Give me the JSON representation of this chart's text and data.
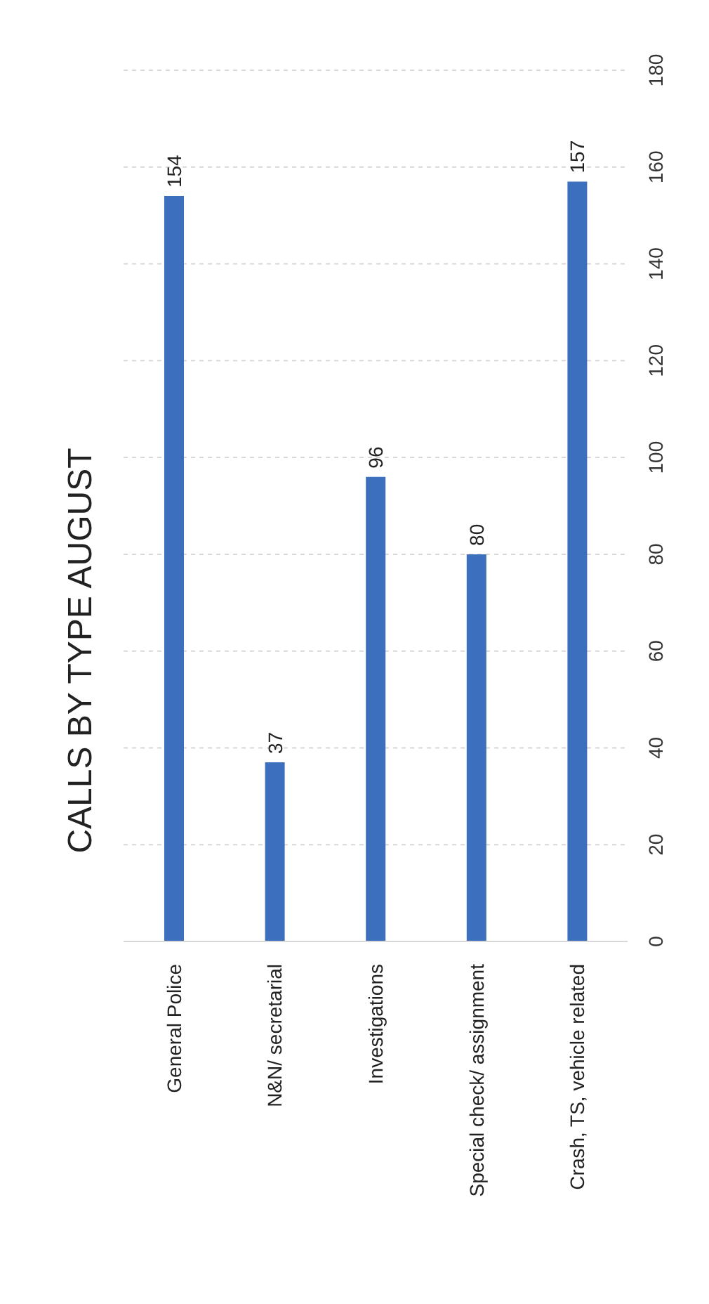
{
  "chart_data": {
    "type": "bar",
    "title": "CALLS BY TYPE AUGUST",
    "categories": [
      "General Police",
      "N&N/ secretarial",
      "Investigations",
      "Special check/ assignment",
      "Crash, TS, vehicle related"
    ],
    "values": [
      154,
      37,
      96,
      80,
      157
    ],
    "color": "#3d6fbf",
    "ylim": [
      0,
      180
    ],
    "yticks": [
      0,
      20,
      40,
      60,
      80,
      100,
      120,
      140,
      160,
      180
    ],
    "grid": "y",
    "data_labels": true
  }
}
